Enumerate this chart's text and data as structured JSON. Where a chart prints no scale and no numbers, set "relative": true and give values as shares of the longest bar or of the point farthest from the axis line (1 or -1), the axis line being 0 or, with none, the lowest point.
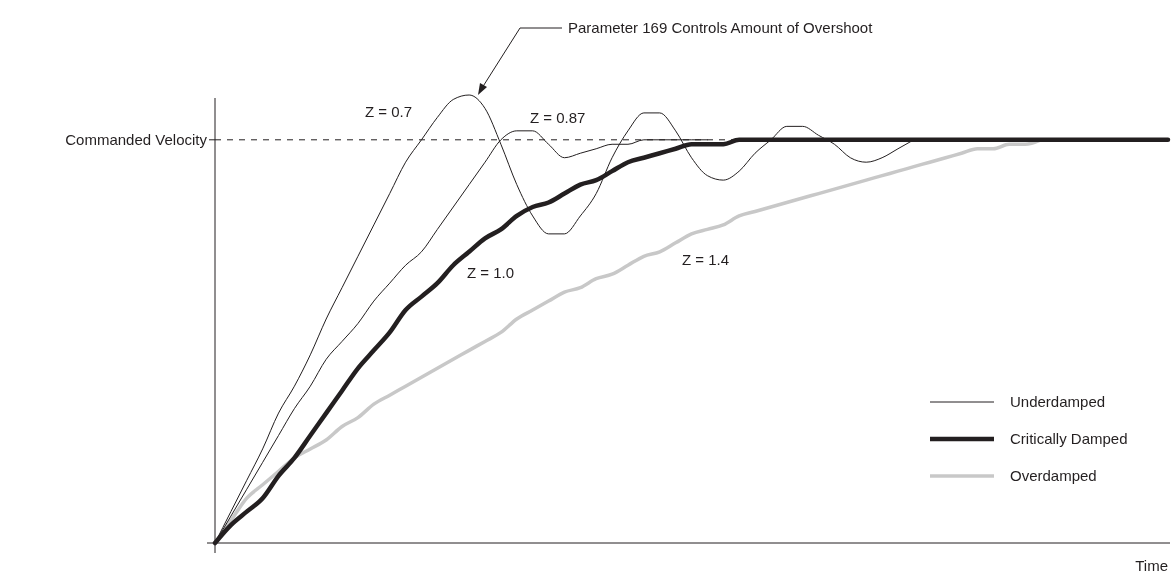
{
  "chart_data": {
    "type": "line",
    "relative": true,
    "xlabel": "Time",
    "categories": [
      null,
      null,
      null,
      null,
      null,
      null,
      null,
      null,
      null,
      null,
      null,
      null,
      null,
      null,
      null,
      null,
      null,
      null,
      null,
      null,
      null,
      null,
      null,
      null,
      null,
      null,
      null,
      null,
      null,
      null,
      null,
      null,
      null,
      null,
      null,
      null,
      null,
      null,
      null,
      null,
      null,
      null,
      null,
      null,
      null,
      null,
      null,
      null,
      null,
      null,
      null,
      null,
      null,
      null,
      null,
      null,
      null,
      null,
      null,
      null,
      null
    ],
    "series": [
      {
        "name": "Underdamped",
        "color": "#231f20",
        "values": [
          0,
          0.07,
          0.14,
          0.21,
          0.29,
          0.35,
          0.42,
          0.5,
          0.57,
          0.64,
          0.71,
          0.78,
          0.85,
          0.9,
          0.95,
          0.99,
          1,
          0.97,
          0.89,
          0.8,
          0.73,
          0.69,
          0.69,
          0.73,
          0.78,
          0.86,
          0.92,
          0.96,
          0.96,
          0.92,
          0.86,
          0.82,
          0.81,
          0.83,
          0.87,
          0.9,
          0.93,
          0.93,
          0.91,
          0.89,
          0.86,
          0.85,
          0.86,
          0.88,
          0.9,
          null,
          null,
          null,
          null,
          null,
          null,
          null,
          null,
          null,
          null,
          null,
          null,
          null,
          null,
          null,
          null
        ]
      },
      {
        "color": "#231f20",
        "values": [
          0,
          0.06,
          0.12,
          0.18,
          0.24,
          0.3,
          0.35,
          0.41,
          0.45,
          0.49,
          0.54,
          0.58,
          0.62,
          0.65,
          0.7,
          0.75,
          0.8,
          0.85,
          0.9,
          0.92,
          0.92,
          0.89,
          0.86,
          0.87,
          0.88,
          0.89,
          0.89,
          0.9,
          0.9,
          0.9,
          0.9,
          0.9,
          null,
          null,
          null,
          null,
          null,
          null,
          null,
          null,
          null,
          null,
          null,
          null,
          null,
          null,
          null,
          null,
          null,
          null,
          null,
          null,
          null,
          null,
          null,
          null,
          null,
          null,
          null,
          null,
          null
        ]
      },
      {
        "name": "Critically Damped",
        "color": "#231f20",
        "values": [
          0,
          0.04,
          0.07,
          0.1,
          0.15,
          0.19,
          0.24,
          0.29,
          0.34,
          0.39,
          0.43,
          0.47,
          0.52,
          0.55,
          0.58,
          0.62,
          0.65,
          0.68,
          0.7,
          0.73,
          0.75,
          0.76,
          0.78,
          0.8,
          0.81,
          0.83,
          0.85,
          0.86,
          0.87,
          0.88,
          0.89,
          0.89,
          0.89,
          0.9,
          0.9,
          0.9,
          0.9,
          0.9,
          0.9,
          0.9,
          0.9,
          0.9,
          0.9,
          0.9,
          0.9,
          0.9,
          0.9,
          0.9,
          0.9,
          0.9,
          0.9,
          0.9,
          0.9,
          0.9,
          0.9,
          0.9,
          0.9,
          0.9,
          0.9,
          0.9,
          0.9
        ]
      },
      {
        "name": "Overdamped",
        "color": "#c8c8c8",
        "values": [
          0,
          0.05,
          0.1,
          0.13,
          0.16,
          0.19,
          0.21,
          0.23,
          0.26,
          0.28,
          0.31,
          0.33,
          0.35,
          0.37,
          0.39,
          0.41,
          0.43,
          0.45,
          0.47,
          0.5,
          0.52,
          0.54,
          0.56,
          0.57,
          0.59,
          0.6,
          0.62,
          0.64,
          0.65,
          0.67,
          0.69,
          0.7,
          0.71,
          0.73,
          0.74,
          0.75,
          0.76,
          0.77,
          0.78,
          0.79,
          0.8,
          0.81,
          0.82,
          0.83,
          0.84,
          0.85,
          0.86,
          0.87,
          0.88,
          0.88,
          0.89,
          0.89,
          0.9,
          null,
          null,
          null,
          null,
          null,
          null,
          null,
          null
        ]
      }
    ],
    "ref_lines": [
      {
        "axis": "y",
        "value": 0.9,
        "label": "Commanded Velocity",
        "line_style": "dashed",
        "color": "#231f20"
      }
    ],
    "annotations": [
      "Parameter 169 Controls Amount of Overshoot",
      "Z = 0.7",
      "Z = 0.87",
      "Z = 1.0",
      "Z = 1.4"
    ],
    "legend": "bottom right",
    "line_style": "solid",
    "marker": "none"
  }
}
